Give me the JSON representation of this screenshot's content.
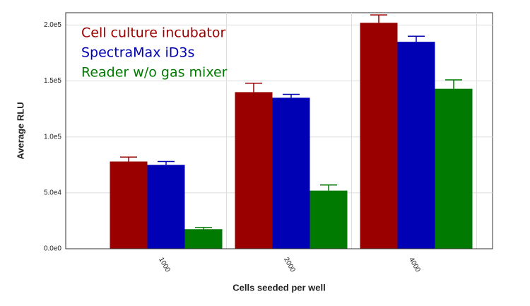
{
  "chart_data": {
    "type": "bar",
    "x_label": "Cells seeded per well",
    "y_label": "Average RLU",
    "categories": [
      "1000",
      "2000",
      "4000"
    ],
    "series": [
      {
        "name": "Cell culture incubator",
        "color": "#9b0000",
        "values": [
          78000,
          140000,
          202000
        ],
        "errors": [
          4000,
          8000,
          7000
        ]
      },
      {
        "name": "SpectraMax iD3s",
        "color": "#0000b4",
        "values": [
          75000,
          135000,
          185000
        ],
        "errors": [
          3000,
          3000,
          5000
        ]
      },
      {
        "name": "Reader w/o gas mixer",
        "color": "#007a00",
        "values": [
          17500,
          52000,
          143000
        ],
        "errors": [
          1500,
          5000,
          8000
        ]
      }
    ],
    "ylim": [
      0,
      211000
    ],
    "yticks": [
      {
        "value": 0,
        "label": "0.0e0"
      },
      {
        "value": 50000,
        "label": "5.0e4"
      },
      {
        "value": 100000,
        "label": "1.0e5"
      },
      {
        "value": 150000,
        "label": "1.5e5"
      },
      {
        "value": 200000,
        "label": "2.0e5"
      }
    ],
    "grid": true,
    "legend": "upper left"
  }
}
